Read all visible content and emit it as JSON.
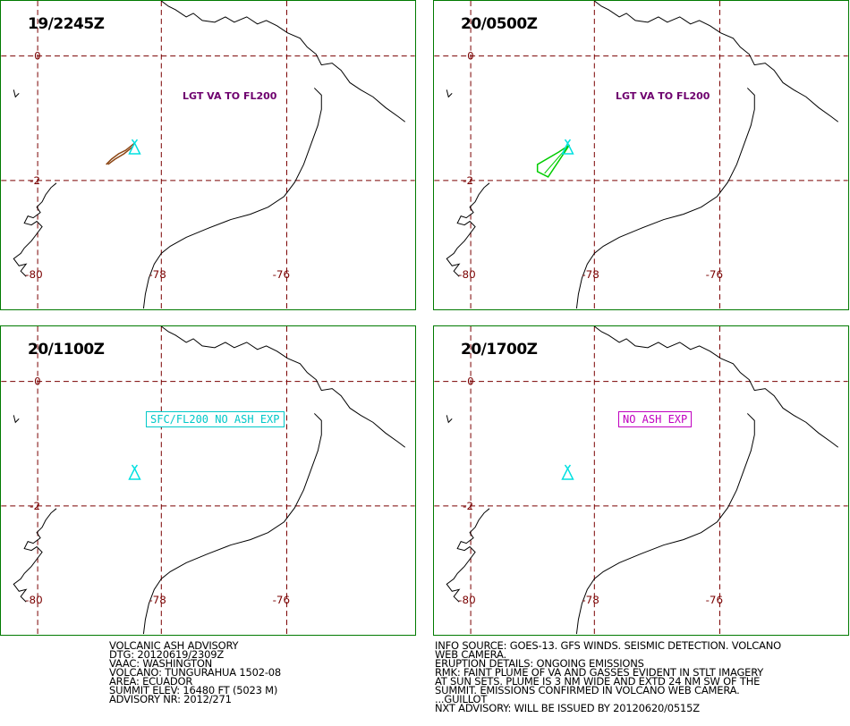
{
  "panels": [
    {
      "time": "19/2245Z",
      "label": "LGT VA TO FL200",
      "label_style": "plain",
      "label_color": "#6e006e",
      "plume": "brown-line"
    },
    {
      "time": "20/0500Z",
      "label": "LGT VA TO FL200",
      "label_style": "plain",
      "label_color": "#6e006e",
      "plume": "green-polygon"
    },
    {
      "time": "20/1100Z",
      "label": "SFC/FL200 NO ASH EXP",
      "label_style": "boxed",
      "label_color": "#00c8c8",
      "plume": "none"
    },
    {
      "time": "20/1700Z",
      "label": "NO ASH EXP",
      "label_style": "boxed",
      "label_color": "#c000c0",
      "plume": "none"
    }
  ],
  "grid_labels": {
    "lat_0": "0",
    "lat_m2": "-2",
    "lon_80": "-80",
    "lon_78": "-78",
    "lon_76": "-76"
  },
  "colors": {
    "border": "#007a00",
    "grid": "#7a0000",
    "volcano": "#00e0e0",
    "plume_brown": "#8b4513",
    "plume_green": "#00cc00"
  },
  "advisory_left": [
    "VOLCANIC ASH ADVISORY",
    "DTG: 20120619/2309Z",
    "VAAC: WASHINGTON",
    "VOLCANO: TUNGURAHUA 1502-08",
    "AREA: ECUADOR",
    "SUMMIT ELEV: 16480 FT (5023 M)",
    "ADVISORY NR: 2012/271"
  ],
  "advisory_right": [
    "INFO SOURCE: GOES-13. GFS WINDS. SEISMIC DETECTION. VOLCANO",
    "WEB CAMERA.",
    "ERUPTION DETAILS: ONGOING EMISSIONS",
    "RMK: FAINT PLUME OF VA AND GASSES EVIDENT IN STLT IMAGERY",
    "AT SUN SETS. PLUME IS 3 NM WIDE AND EXTD 24 NM SW OF THE",
    "SUMMIT. EMISSIONS CONFIRMED IN VOLCANO WEB CAMERA.",
    "...GUILLOT",
    "NXT ADVISORY: WILL BE ISSUED BY 20120620/0515Z"
  ]
}
